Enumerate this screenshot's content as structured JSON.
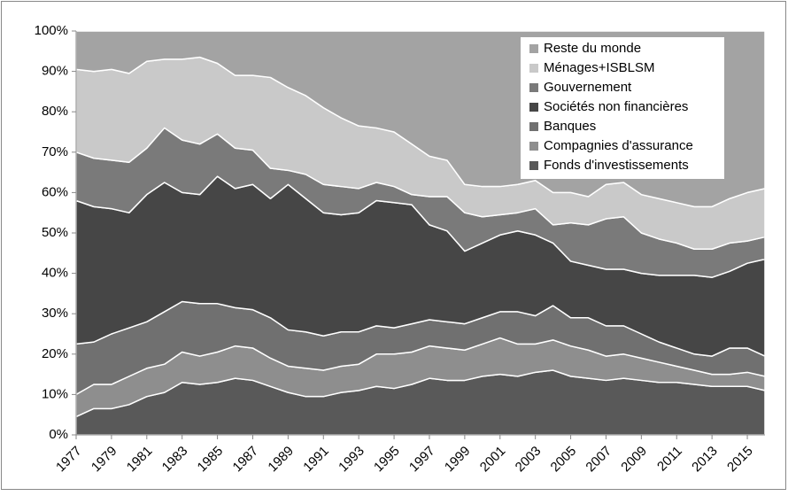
{
  "chart_data": {
    "type": "stacked_area",
    "x": [
      1977,
      1978,
      1979,
      1980,
      1981,
      1982,
      1983,
      1984,
      1985,
      1986,
      1987,
      1988,
      1989,
      1990,
      1991,
      1992,
      1993,
      1994,
      1995,
      1996,
      1997,
      1998,
      1999,
      2000,
      2001,
      2002,
      2003,
      2004,
      2005,
      2006,
      2007,
      2008,
      2009,
      2010,
      2011,
      2012,
      2013,
      2014,
      2015,
      2016
    ],
    "xlim": [
      1977,
      2016
    ],
    "xticks": [
      1977,
      1979,
      1981,
      1983,
      1985,
      1987,
      1989,
      1991,
      1993,
      1995,
      1997,
      1999,
      2001,
      2003,
      2005,
      2007,
      2009,
      2011,
      2013,
      2015
    ],
    "ylim": [
      0,
      100
    ],
    "yticks": [
      {
        "value": 0,
        "label": "0%"
      },
      {
        "value": 10,
        "label": "10%"
      },
      {
        "value": 20,
        "label": "20%"
      },
      {
        "value": 30,
        "label": "30%"
      },
      {
        "value": 40,
        "label": "40%"
      },
      {
        "value": 50,
        "label": "50%"
      },
      {
        "value": 60,
        "label": "60%"
      },
      {
        "value": 70,
        "label": "70%"
      },
      {
        "value": 80,
        "label": "80%"
      },
      {
        "value": 90,
        "label": "90%"
      },
      {
        "value": 100,
        "label": "100%"
      }
    ],
    "legend": "top-right",
    "series": [
      {
        "name": "Fonds d'investissements",
        "color": "#595959",
        "values": [
          4.5,
          6.5,
          6.5,
          7.5,
          9.5,
          10.5,
          13,
          12.5,
          13,
          14,
          13.5,
          12,
          10.5,
          9.5,
          9.5,
          10.5,
          11,
          12,
          11.5,
          12.5,
          14,
          13.5,
          13.5,
          14.5,
          15,
          14.5,
          15.5,
          16,
          14.5,
          14,
          13.5,
          14,
          13.5,
          13,
          13,
          12.5,
          12,
          12,
          12,
          11
        ]
      },
      {
        "name": "Compagnies d'assurance",
        "color": "#8e8e8e",
        "values": [
          5.5,
          6,
          6,
          7,
          7,
          7,
          7.5,
          7,
          7.5,
          8,
          8,
          7,
          6.5,
          7,
          6.5,
          6.5,
          6.5,
          8,
          8.5,
          8,
          8,
          8,
          7.5,
          8,
          9,
          8,
          7,
          7.5,
          7.5,
          7,
          6,
          6,
          5.5,
          5,
          4,
          3.5,
          3,
          3,
          3.5,
          3.5
        ]
      },
      {
        "name": "Banques",
        "color": "#707070",
        "values": [
          12.5,
          10.5,
          12.5,
          12,
          11.5,
          13,
          12.5,
          13,
          12,
          9.5,
          9.5,
          10,
          9,
          9,
          8.5,
          8.5,
          8,
          7,
          6.5,
          7,
          6.5,
          6.5,
          6.5,
          6.5,
          6.5,
          8,
          7,
          8.5,
          7,
          8,
          7.5,
          7,
          6,
          5,
          4.5,
          4,
          4.5,
          6.5,
          6,
          5
        ]
      },
      {
        "name": "Sociétés non financières",
        "color": "#464646",
        "values": [
          35.5,
          33.5,
          31,
          28.5,
          31.5,
          32,
          27,
          27,
          31.5,
          29.5,
          31,
          29.5,
          36,
          33,
          30.5,
          29,
          29.5,
          31,
          31,
          29.5,
          23.5,
          22.5,
          18,
          18.5,
          19,
          20,
          20,
          15.5,
          14,
          13,
          14,
          14,
          15,
          16.5,
          18,
          19.5,
          19.5,
          19,
          21,
          24
        ]
      },
      {
        "name": "Gouvernement",
        "color": "#7a7a7a",
        "values": [
          12,
          12,
          12,
          12.5,
          11.5,
          13.5,
          13,
          12.5,
          10.5,
          10,
          8.5,
          7.5,
          3.5,
          6,
          7,
          7,
          6,
          4.5,
          4,
          2.5,
          7,
          8.5,
          9.5,
          6.5,
          5,
          4.5,
          6.5,
          4.5,
          9.5,
          10,
          12.5,
          13,
          10,
          9,
          8,
          6.5,
          7,
          7,
          5.5,
          5.5
        ]
      },
      {
        "name": "Ménages+ISBLSM",
        "color": "#c9c9c9",
        "values": [
          20.5,
          21.5,
          22.5,
          22,
          21.5,
          17,
          20,
          21.5,
          17.5,
          18,
          18.5,
          22.5,
          20.5,
          19.5,
          19,
          17,
          15.5,
          13.5,
          13.5,
          12.5,
          10,
          9,
          7,
          7.5,
          7,
          7,
          7,
          8,
          7.5,
          7,
          8.5,
          8.5,
          9.5,
          10,
          10,
          10.5,
          10.5,
          11,
          12,
          12
        ]
      },
      {
        "name": "Reste du monde",
        "color": "#a3a3a3",
        "values": [
          9.5,
          10,
          9.5,
          10.5,
          7.5,
          7,
          7,
          6.5,
          8,
          11,
          11,
          11.5,
          14,
          16,
          19,
          21.5,
          23.5,
          24,
          25,
          28,
          31,
          32,
          38,
          38.5,
          38.5,
          38,
          37,
          40,
          40,
          41,
          38,
          37.5,
          40.5,
          41.5,
          42.5,
          43.5,
          43.5,
          41.5,
          40,
          39
        ]
      }
    ]
  }
}
